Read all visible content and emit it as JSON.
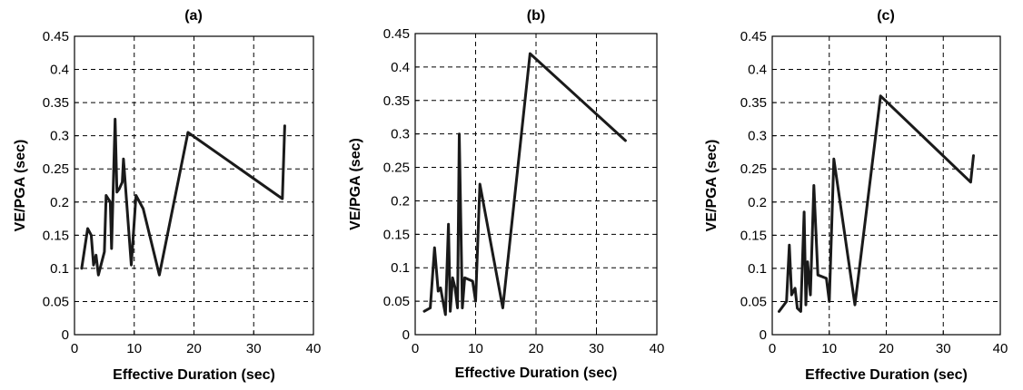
{
  "chart_data": [
    {
      "type": "line",
      "title": "(a)",
      "xlabel": "Effective Duration (sec)",
      "ylabel": "VE/PGA (sec)",
      "xlim": [
        0,
        40
      ],
      "ylim": [
        0,
        0.45
      ],
      "xticks": [
        0,
        10,
        20,
        30,
        40
      ],
      "yticks": [
        0,
        0.05,
        0.1,
        0.15,
        0.2,
        0.25,
        0.3,
        0.35,
        0.4,
        0.45
      ],
      "xtick_labels": [
        "0",
        "10",
        "20",
        "30",
        "40"
      ],
      "ytick_labels": [
        "0",
        "0.05",
        "0.1",
        "0.15",
        "0.2",
        "0.25",
        "0.3",
        "0.35",
        "0.4",
        "0.45"
      ],
      "grid": true,
      "series": [
        {
          "x": [
            1.2,
            2.2,
            2.8,
            3.2,
            3.6,
            4.0,
            5.0,
            5.3,
            6.0,
            6.2,
            6.8,
            7.1,
            7.5,
            8.0,
            8.2,
            9.5,
            10.3,
            11.5,
            14.2,
            19.0,
            34.8,
            35.2
          ],
          "y": [
            0.1,
            0.16,
            0.15,
            0.105,
            0.12,
            0.09,
            0.125,
            0.21,
            0.2,
            0.13,
            0.325,
            0.215,
            0.22,
            0.23,
            0.265,
            0.105,
            0.21,
            0.19,
            0.09,
            0.305,
            0.205,
            0.315
          ]
        }
      ]
    },
    {
      "type": "line",
      "title": "(b)",
      "xlabel": "Effective Duration (sec)",
      "ylabel": "VE/PGA (sec)",
      "xlim": [
        0,
        40
      ],
      "ylim": [
        0,
        0.45
      ],
      "xticks": [
        0,
        10,
        20,
        30,
        40
      ],
      "yticks": [
        0,
        0.05,
        0.1,
        0.15,
        0.2,
        0.25,
        0.3,
        0.35,
        0.4,
        0.45
      ],
      "xtick_labels": [
        "0",
        "10",
        "20",
        "30",
        "40"
      ],
      "ytick_labels": [
        "0",
        "0.05",
        "0.1",
        "0.15",
        "0.2",
        "0.25",
        "0.3",
        "0.35",
        "0.4",
        "0.45"
      ],
      "grid": true,
      "series": [
        {
          "x": [
            1.5,
            2.5,
            3.2,
            3.8,
            4.2,
            4.5,
            5.0,
            5.5,
            5.8,
            6.2,
            6.6,
            7.0,
            7.3,
            7.8,
            8.2,
            9.5,
            10.0,
            10.7,
            14.5,
            19.0,
            34.8
          ],
          "y": [
            0.035,
            0.04,
            0.13,
            0.065,
            0.07,
            0.055,
            0.03,
            0.165,
            0.035,
            0.085,
            0.07,
            0.04,
            0.3,
            0.04,
            0.085,
            0.08,
            0.05,
            0.225,
            0.04,
            0.42,
            0.29
          ]
        }
      ]
    },
    {
      "type": "line",
      "title": "(c)",
      "xlabel": "Effective Duration (sec)",
      "ylabel": "VE/PGA (sec)",
      "xlim": [
        0,
        40
      ],
      "ylim": [
        0,
        0.45
      ],
      "xticks": [
        0,
        10,
        20,
        30,
        40
      ],
      "yticks": [
        0,
        0.05,
        0.1,
        0.15,
        0.2,
        0.25,
        0.3,
        0.35,
        0.4,
        0.45
      ],
      "xtick_labels": [
        "0",
        "10",
        "20",
        "30",
        "40"
      ],
      "ytick_labels": [
        "0",
        "0.05",
        "0.1",
        "0.15",
        "0.2",
        "0.25",
        "0.3",
        "0.35",
        "0.4",
        "0.45"
      ],
      "grid": true,
      "series": [
        {
          "x": [
            1.2,
            2.5,
            3.0,
            3.4,
            4.0,
            4.4,
            5.0,
            5.6,
            5.9,
            6.2,
            6.7,
            7.3,
            8.0,
            9.5,
            10.0,
            10.8,
            14.5,
            19.0,
            34.8,
            35.3
          ],
          "y": [
            0.035,
            0.05,
            0.135,
            0.06,
            0.07,
            0.04,
            0.035,
            0.185,
            0.045,
            0.11,
            0.06,
            0.225,
            0.09,
            0.085,
            0.05,
            0.265,
            0.045,
            0.36,
            0.23,
            0.27
          ]
        }
      ]
    }
  ]
}
